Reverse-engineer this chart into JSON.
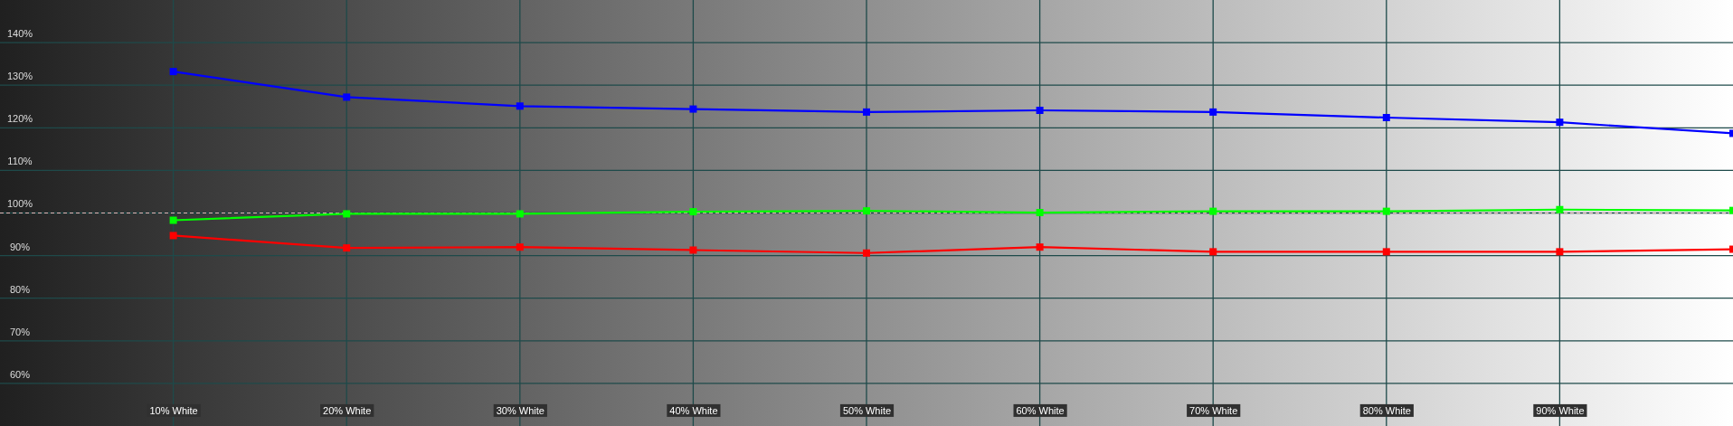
{
  "chart_data": {
    "type": "line",
    "x": [
      10,
      20,
      30,
      40,
      50,
      60,
      70,
      80,
      90,
      100
    ],
    "xlim": [
      0,
      100
    ],
    "ylim": [
      50,
      150
    ],
    "xticks": [
      {
        "value": 10,
        "label": "10% White"
      },
      {
        "value": 20,
        "label": "20% White"
      },
      {
        "value": 30,
        "label": "30% White"
      },
      {
        "value": 40,
        "label": "40% White"
      },
      {
        "value": 50,
        "label": "50% White"
      },
      {
        "value": 60,
        "label": "60% White"
      },
      {
        "value": 70,
        "label": "70% White"
      },
      {
        "value": 80,
        "label": "80% White"
      },
      {
        "value": 90,
        "label": "90% White"
      }
    ],
    "yticks": [
      {
        "value": 60,
        "label": "60%"
      },
      {
        "value": 70,
        "label": "70%"
      },
      {
        "value": 80,
        "label": "80%"
      },
      {
        "value": 90,
        "label": "90%"
      },
      {
        "value": 100,
        "label": "100%"
      },
      {
        "value": 110,
        "label": "110%"
      },
      {
        "value": 120,
        "label": "120%"
      },
      {
        "value": 130,
        "label": "130%"
      },
      {
        "value": 140,
        "label": "140%"
      }
    ],
    "series": [
      {
        "color": "#0000ff",
        "values": [
          133.2,
          127.2,
          125.1,
          124.4,
          123.7,
          124.1,
          123.7,
          122.4,
          121.3,
          118.7
        ]
      },
      {
        "color": "#00ff00",
        "values": [
          98.3,
          99.8,
          99.8,
          100.3,
          100.5,
          100.1,
          100.4,
          100.4,
          100.8,
          100.6
        ]
      },
      {
        "color": "#ff0000",
        "values": [
          94.7,
          91.8,
          92.0,
          91.3,
          90.6,
          92.0,
          90.9,
          90.9,
          90.9,
          91.5
        ]
      }
    ],
    "ref_lines": [
      {
        "axis": "y",
        "value": 100,
        "color": "#ffffff",
        "line_style": "dashed"
      }
    ],
    "grid": true,
    "marker": "square",
    "line_style": "solid"
  }
}
